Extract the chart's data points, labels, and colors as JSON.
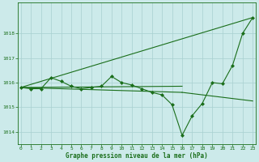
{
  "lines": [
    {
      "x": [
        0,
        1,
        2,
        3,
        4,
        5,
        6,
        7,
        8,
        9,
        10,
        11,
        12,
        13,
        14,
        15,
        16,
        17,
        18,
        19,
        20,
        21,
        22,
        23
      ],
      "y": [
        1015.8,
        1015.75,
        1015.75,
        1016.2,
        1016.05,
        1015.85,
        1015.75,
        1015.8,
        1015.85,
        1016.25,
        1016.0,
        1015.9,
        1015.75,
        1015.6,
        1015.5,
        1015.1,
        1013.85,
        1014.65,
        1015.15,
        1016.0,
        1015.95,
        1016.7,
        1018.0,
        1018.65
      ],
      "marker": "D",
      "markersize": 2.0,
      "linewidth": 0.8,
      "zorder": 3
    },
    {
      "x": [
        0,
        23
      ],
      "y": [
        1015.8,
        1018.65
      ],
      "marker": null,
      "markersize": 0,
      "linewidth": 0.8,
      "zorder": 2
    },
    {
      "x": [
        0,
        16
      ],
      "y": [
        1015.8,
        1015.85
      ],
      "marker": null,
      "markersize": 0,
      "linewidth": 0.8,
      "zorder": 2
    },
    {
      "x": [
        0,
        16
      ],
      "y": [
        1015.8,
        1015.6
      ],
      "marker": null,
      "markersize": 0,
      "linewidth": 0.8,
      "zorder": 2
    },
    {
      "x": [
        16,
        23
      ],
      "y": [
        1015.6,
        1015.25
      ],
      "marker": null,
      "markersize": 0,
      "linewidth": 0.8,
      "zorder": 2
    }
  ],
  "line_color": "#1a6e1a",
  "ylim": [
    1013.5,
    1019.25
  ],
  "yticks": [
    1014,
    1015,
    1016,
    1017,
    1018
  ],
  "xlim": [
    -0.3,
    23.3
  ],
  "xticks": [
    0,
    1,
    2,
    3,
    4,
    5,
    6,
    7,
    8,
    9,
    10,
    11,
    12,
    13,
    14,
    15,
    16,
    17,
    18,
    19,
    20,
    21,
    22,
    23
  ],
  "xlabel": "Graphe pression niveau de la mer (hPa)",
  "bg_color": "#cceaea",
  "grid_color": "#a8d0d0",
  "tick_label_color": "#1a6e1a",
  "axis_label_color": "#1a6e1a"
}
